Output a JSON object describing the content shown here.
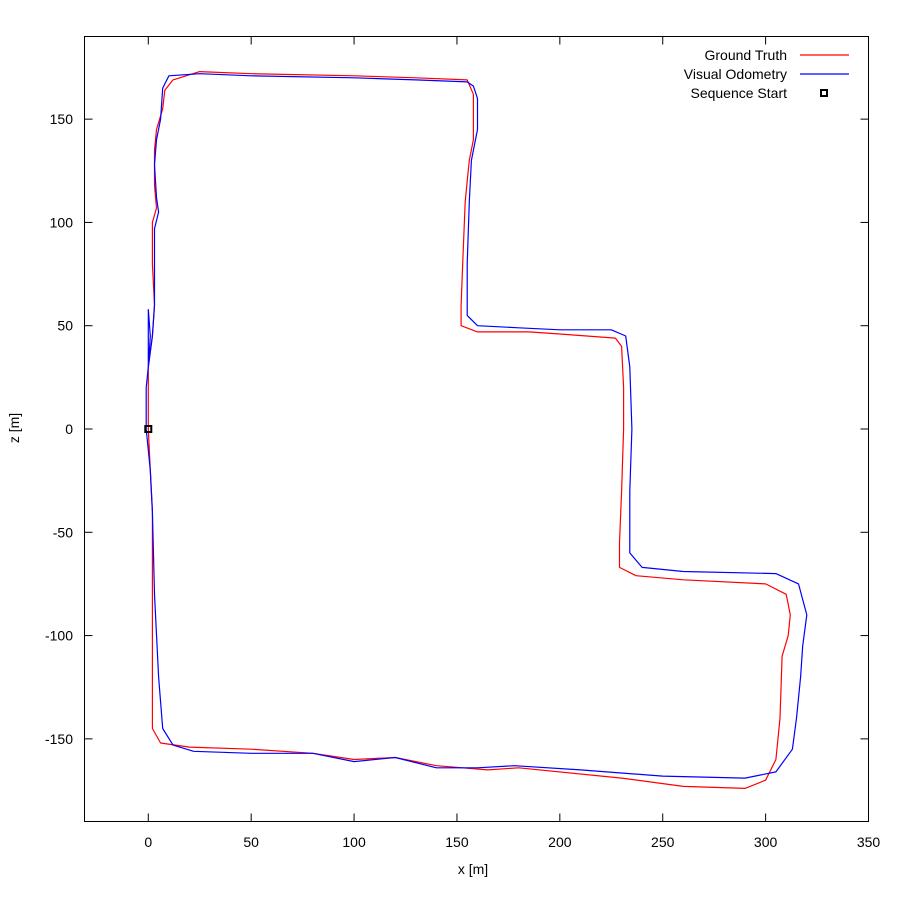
{
  "chart_data": {
    "type": "line",
    "xlabel": "x [m]",
    "ylabel": "z [m]",
    "xlim": [
      -31,
      350
    ],
    "ylim": [
      -190,
      190
    ],
    "xticks": [
      0,
      50,
      100,
      150,
      200,
      250,
      300,
      350
    ],
    "yticks": [
      150,
      100,
      50,
      0,
      -50,
      -100,
      -150
    ],
    "grid": false,
    "legend_position": "top-right",
    "series": [
      {
        "name": "Ground Truth",
        "color": "#ff0000",
        "points": [
          [
            0,
            0
          ],
          [
            1,
            -20
          ],
          [
            2,
            -40
          ],
          [
            2,
            -80
          ],
          [
            2,
            -120
          ],
          [
            2,
            -145
          ],
          [
            6,
            -152
          ],
          [
            20,
            -154
          ],
          [
            50,
            -155
          ],
          [
            80,
            -157
          ],
          [
            100,
            -160
          ],
          [
            120,
            -159
          ],
          [
            140,
            -163
          ],
          [
            165,
            -165
          ],
          [
            180,
            -164
          ],
          [
            230,
            -169
          ],
          [
            260,
            -173
          ],
          [
            290,
            -174
          ],
          [
            300,
            -170
          ],
          [
            305,
            -160
          ],
          [
            307,
            -140
          ],
          [
            308,
            -110
          ],
          [
            311,
            -100
          ],
          [
            312,
            -90
          ],
          [
            310,
            -80
          ],
          [
            300,
            -75
          ],
          [
            260,
            -73
          ],
          [
            237,
            -71
          ],
          [
            229,
            -67
          ],
          [
            229,
            -55
          ],
          [
            230,
            -30
          ],
          [
            231,
            0
          ],
          [
            231,
            20
          ],
          [
            230,
            40
          ],
          [
            227,
            44
          ],
          [
            200,
            46
          ],
          [
            185,
            47
          ],
          [
            160,
            47
          ],
          [
            152,
            50
          ],
          [
            152,
            60
          ],
          [
            153,
            85
          ],
          [
            154,
            110
          ],
          [
            155,
            120
          ],
          [
            156,
            130
          ],
          [
            158,
            140
          ],
          [
            158,
            150
          ],
          [
            158,
            162
          ],
          [
            155,
            169
          ],
          [
            130,
            170
          ],
          [
            100,
            171
          ],
          [
            50,
            172
          ],
          [
            25,
            173
          ],
          [
            12,
            169
          ],
          [
            8,
            164
          ],
          [
            7,
            155
          ],
          [
            4,
            145
          ],
          [
            3,
            135
          ],
          [
            3,
            118
          ],
          [
            4,
            107
          ],
          [
            2,
            100
          ],
          [
            2,
            80
          ],
          [
            3,
            60
          ],
          [
            2,
            45
          ],
          [
            0,
            30
          ],
          [
            0,
            15
          ],
          [
            0,
            0
          ]
        ]
      },
      {
        "name": "Visual Odometry",
        "color": "#0000ff",
        "points": [
          [
            0,
            58
          ],
          [
            1,
            45
          ],
          [
            0,
            30
          ],
          [
            -1,
            20
          ],
          [
            -1,
            0
          ],
          [
            1,
            -20
          ],
          [
            2,
            -40
          ],
          [
            3,
            -80
          ],
          [
            5,
            -120
          ],
          [
            7,
            -145
          ],
          [
            12,
            -153
          ],
          [
            22,
            -156
          ],
          [
            50,
            -157
          ],
          [
            80,
            -157
          ],
          [
            100,
            -161
          ],
          [
            120,
            -159
          ],
          [
            140,
            -164
          ],
          [
            160,
            -164
          ],
          [
            178,
            -163
          ],
          [
            210,
            -165
          ],
          [
            250,
            -168
          ],
          [
            290,
            -169
          ],
          [
            305,
            -166
          ],
          [
            313,
            -155
          ],
          [
            315,
            -140
          ],
          [
            317,
            -120
          ],
          [
            318,
            -105
          ],
          [
            320,
            -90
          ],
          [
            316,
            -75
          ],
          [
            305,
            -70
          ],
          [
            260,
            -69
          ],
          [
            240,
            -67
          ],
          [
            234,
            -60
          ],
          [
            234,
            -30
          ],
          [
            235,
            0
          ],
          [
            234,
            30
          ],
          [
            232,
            45
          ],
          [
            225,
            48
          ],
          [
            200,
            48
          ],
          [
            180,
            49
          ],
          [
            160,
            50
          ],
          [
            155,
            55
          ],
          [
            155,
            80
          ],
          [
            156,
            110
          ],
          [
            157,
            130
          ],
          [
            160,
            145
          ],
          [
            160,
            160
          ],
          [
            158,
            166
          ],
          [
            155,
            168
          ],
          [
            130,
            169
          ],
          [
            100,
            170
          ],
          [
            50,
            171
          ],
          [
            25,
            172
          ],
          [
            10,
            171
          ],
          [
            7,
            165
          ],
          [
            6,
            150
          ],
          [
            4,
            140
          ],
          [
            3,
            128
          ],
          [
            4,
            112
          ],
          [
            5,
            105
          ],
          [
            3,
            97
          ],
          [
            3,
            80
          ],
          [
            3,
            60
          ],
          [
            2,
            45
          ],
          [
            0,
            30
          ],
          [
            0,
            58
          ]
        ]
      }
    ],
    "markers": [
      {
        "name": "Sequence Start",
        "x": 0,
        "z": 0,
        "symbol": "open-square",
        "color": "#000000"
      }
    ]
  },
  "legend": {
    "items": [
      {
        "label": "Ground Truth",
        "color": "#ff0000",
        "symbol": "line"
      },
      {
        "label": "Visual Odometry",
        "color": "#0000ff",
        "symbol": "line"
      },
      {
        "label": "Sequence Start",
        "color": "#000000",
        "symbol": "open-square"
      }
    ]
  }
}
